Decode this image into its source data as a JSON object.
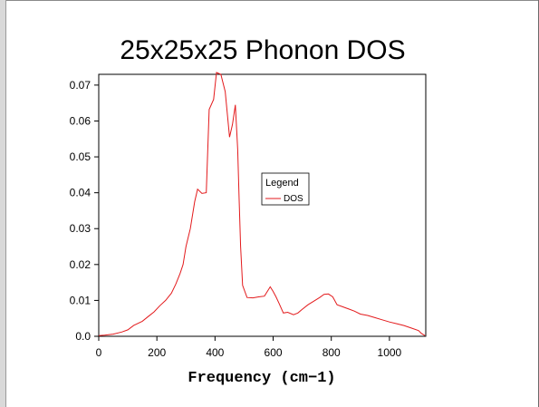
{
  "chart_data": {
    "type": "line",
    "title": "25x25x25 Phonon DOS",
    "xlabel": "Frequency (cm−1)",
    "ylabel": "",
    "xlim": [
      0,
      1125
    ],
    "ylim": [
      0,
      0.073
    ],
    "x_ticks": [
      0,
      200,
      400,
      600,
      800,
      1000
    ],
    "x_tick_labels": [
      "0",
      "200",
      "400",
      "600",
      "800",
      "1000"
    ],
    "y_ticks": [
      0,
      0.01,
      0.02,
      0.03,
      0.04,
      0.05,
      0.06,
      0.07
    ],
    "y_tick_labels": [
      "0.0",
      "0.01",
      "0.02",
      "0.03",
      "0.04",
      "0.05",
      "0.06",
      "0.07"
    ],
    "grid": false,
    "legend": {
      "title": "Legend",
      "placement": "center-right",
      "entries": [
        "DOS"
      ]
    },
    "series": [
      {
        "name": "DOS",
        "color": "#e31a1c",
        "x": [
          0,
          20,
          50,
          80,
          100,
          120,
          150,
          170,
          190,
          210,
          230,
          250,
          265,
          280,
          290,
          300,
          315,
          330,
          340,
          355,
          370,
          380,
          395,
          405,
          420,
          435,
          450,
          460,
          470,
          478,
          483,
          488,
          495,
          510,
          530,
          550,
          570,
          590,
          600,
          610,
          620,
          635,
          650,
          670,
          685,
          700,
          720,
          740,
          760,
          775,
          790,
          805,
          820,
          840,
          860,
          880,
          900,
          925,
          950,
          975,
          1000,
          1025,
          1050,
          1075,
          1100,
          1110,
          1122
        ],
        "y": [
          0.0002,
          0.0003,
          0.0006,
          0.0012,
          0.0018,
          0.003,
          0.0042,
          0.0055,
          0.0068,
          0.0085,
          0.01,
          0.012,
          0.0145,
          0.0175,
          0.02,
          0.025,
          0.03,
          0.0375,
          0.041,
          0.0398,
          0.04,
          0.0632,
          0.066,
          0.0735,
          0.073,
          0.0682,
          0.0555,
          0.059,
          0.0645,
          0.052,
          0.038,
          0.025,
          0.0142,
          0.0108,
          0.0107,
          0.011,
          0.0112,
          0.0138,
          0.0125,
          0.011,
          0.0092,
          0.0065,
          0.0067,
          0.006,
          0.0065,
          0.0075,
          0.0088,
          0.0098,
          0.0108,
          0.0117,
          0.0118,
          0.011,
          0.0088,
          0.0082,
          0.0076,
          0.007,
          0.0062,
          0.0058,
          0.0052,
          0.0046,
          0.004,
          0.0035,
          0.003,
          0.0023,
          0.0016,
          0.0008,
          0.0002
        ]
      }
    ]
  }
}
